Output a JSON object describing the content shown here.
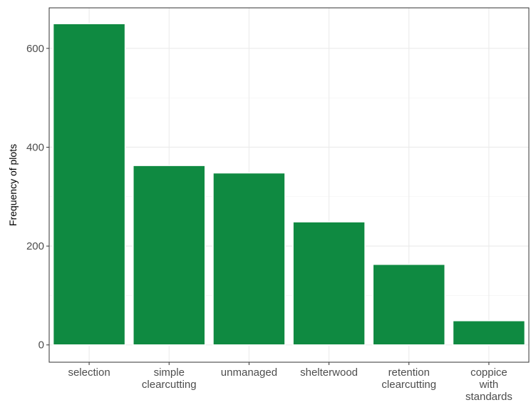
{
  "chart_data": {
    "type": "bar",
    "categories": [
      "selection",
      "simple clearcutting",
      "unmanaged",
      "shelterwood",
      "retention clearcutting",
      "coppice with standards"
    ],
    "category_lines": [
      [
        "selection"
      ],
      [
        "simple",
        "clearcutting"
      ],
      [
        "unmanaged"
      ],
      [
        "shelterwood"
      ],
      [
        "retention",
        "clearcutting"
      ],
      [
        "coppice",
        "with",
        "standards"
      ]
    ],
    "values": [
      650,
      363,
      348,
      249,
      163,
      49
    ],
    "title": "",
    "xlabel": "",
    "ylabel": "Frequency of plots",
    "ylim": [
      -35,
      682
    ],
    "yticks": [
      0,
      200,
      400,
      600
    ],
    "grid": true,
    "legend": "none",
    "bar_color": "#0f8a41"
  }
}
